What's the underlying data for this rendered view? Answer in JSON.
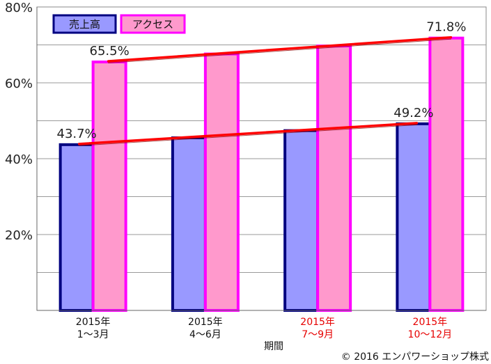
{
  "chart_data": {
    "type": "bar",
    "xlabel": "期間",
    "ylim": [
      0,
      80
    ],
    "yticks": [
      {
        "value": 20,
        "label": "20%"
      },
      {
        "value": 40,
        "label": "40%"
      },
      {
        "value": 60,
        "label": "60%"
      },
      {
        "value": 80,
        "label": "80%"
      }
    ],
    "grid": true,
    "legend": "top-left",
    "categories": [
      {
        "line1": "2015年",
        "line2": "1〜3月",
        "color": "#111111"
      },
      {
        "line1": "2015年",
        "line2": "4〜6月",
        "color": "#111111"
      },
      {
        "line1": "2015年",
        "line2": "7〜9月",
        "color": "#e60000"
      },
      {
        "line1": "2015年",
        "line2": "10〜12月",
        "color": "#e60000"
      }
    ],
    "series": [
      {
        "name": "売上高",
        "values": [
          43.7,
          45.5,
          47.4,
          49.2
        ],
        "fill": "#9999ff",
        "stroke": "#000080"
      },
      {
        "name": "アクセス",
        "values": [
          65.5,
          67.6,
          69.7,
          71.8
        ],
        "fill": "#ff99cc",
        "stroke": "#ff00ff"
      }
    ],
    "data_labels": [
      {
        "series": 0,
        "index": 0,
        "text": "43.7%"
      },
      {
        "series": 0,
        "index": 3,
        "text": "49.2%"
      },
      {
        "series": 1,
        "index": 0,
        "text": "65.5%"
      },
      {
        "series": 1,
        "index": 3,
        "text": "71.8%"
      }
    ],
    "trendline_color": "#ff0000"
  },
  "copyright": "© 2016 エンパワーショップ株式"
}
